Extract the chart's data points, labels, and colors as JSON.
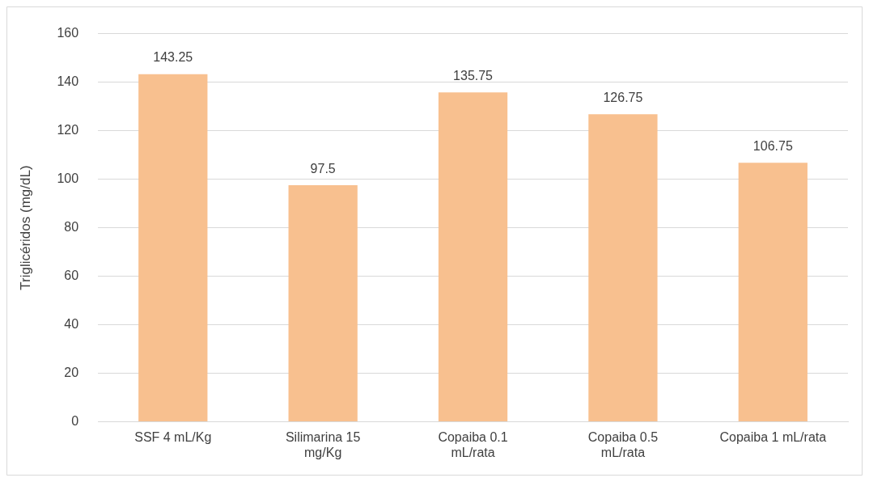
{
  "chart_data": {
    "type": "bar",
    "ylabel": "Triglicéridos (mg/dL)",
    "categories": [
      "SSF 4 mL/Kg",
      "Silimarina 15 mg/Kg",
      "Copaiba 0.1 mL/rata",
      "Copaiba 0.5 mL/rata",
      "Copaiba 1 mL/rata"
    ],
    "values": [
      143.25,
      97.5,
      135.75,
      126.75,
      106.75
    ],
    "color": "#f8c08f",
    "ylim": [
      0,
      160
    ],
    "yticks": [
      0,
      20,
      40,
      60,
      80,
      100,
      120,
      140,
      160
    ],
    "grid": "y",
    "data_labels": true,
    "legend": false
  }
}
